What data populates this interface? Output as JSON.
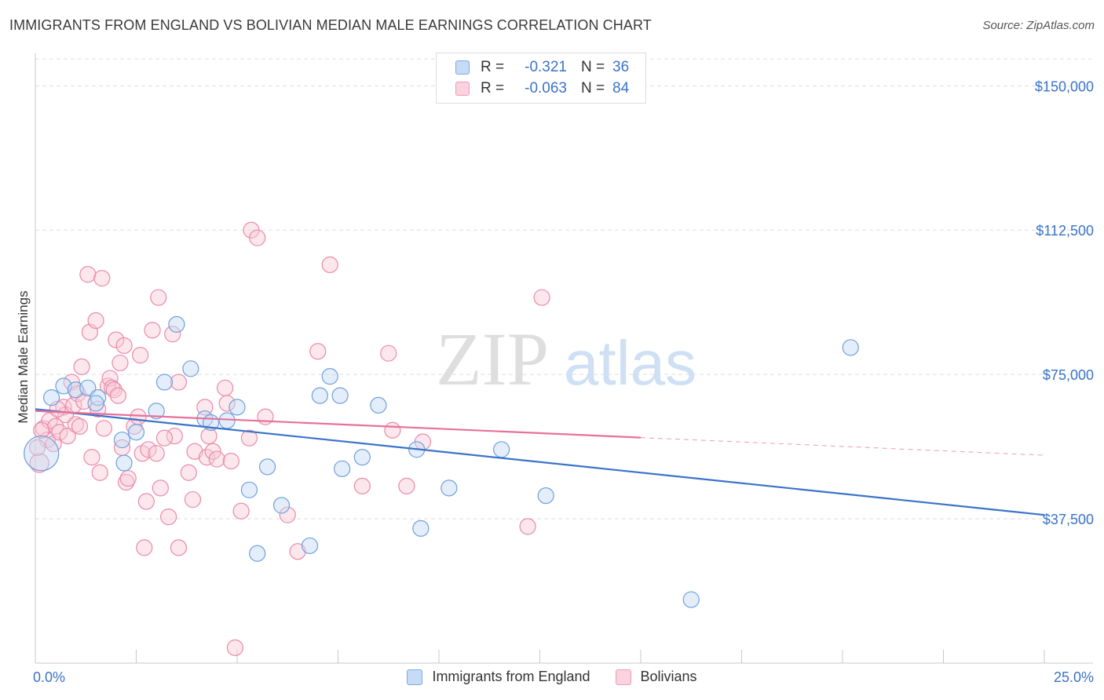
{
  "title": "IMMIGRANTS FROM ENGLAND VS BOLIVIAN MEDIAN MALE EARNINGS CORRELATION CHART",
  "source": "Source: ZipAtlas.com",
  "watermark": {
    "zip": "ZIP",
    "atlas": "atlas"
  },
  "legend_top": [
    {
      "r_label": "R =",
      "r_value": "-0.321",
      "n_label": "N =",
      "n_value": "36",
      "color": "#a9c8ef"
    },
    {
      "r_label": "R =",
      "r_value": "-0.063",
      "n_label": "N =",
      "n_value": "84",
      "color": "#f5b8c9"
    }
  ],
  "legend_bottom": [
    {
      "label": "Immigrants from England",
      "color": "#a9c8ef"
    },
    {
      "label": "Bolivians",
      "color": "#f5b8c9"
    }
  ],
  "colors": {
    "blue": "#3a73c9",
    "blue_fill": "#a9c8ef",
    "pink": "#e8709a",
    "pink_fill": "#f5b8c9",
    "grid": "#dddddd",
    "tick_text": "#3a73c9"
  },
  "chart_data": {
    "type": "scatter",
    "xlabel": "",
    "ylabel": "Median Male Earnings",
    "xlim": [
      0,
      25
    ],
    "ylim": [
      0,
      157000
    ],
    "x_tick_labels": [
      {
        "value": 0,
        "label": "0.0%"
      },
      {
        "value": 25,
        "label": "25.0%"
      }
    ],
    "y_ticks": [
      {
        "value": 37500,
        "label": "$37,500"
      },
      {
        "value": 75000,
        "label": "$75,000"
      },
      {
        "value": 112500,
        "label": "$112,500"
      },
      {
        "value": 150000,
        "label": "$150,000"
      }
    ],
    "series": [
      {
        "name": "Immigrants from England",
        "color": "#a9c8ef",
        "trend": {
          "x0": 0,
          "y0": 66000,
          "x1": 25,
          "y1": 38500,
          "x_solid_end": 25
        },
        "points": [
          [
            0.15,
            54500,
            22
          ],
          [
            0.4,
            69000,
            10
          ],
          [
            0.7,
            72000,
            10
          ],
          [
            1.0,
            71000,
            10
          ],
          [
            1.3,
            71500,
            10
          ],
          [
            1.55,
            69000,
            10
          ],
          [
            1.5,
            67500,
            10
          ],
          [
            2.15,
            58000,
            10
          ],
          [
            2.2,
            52000,
            10
          ],
          [
            2.5,
            60000,
            10
          ],
          [
            3.0,
            65500,
            10
          ],
          [
            3.2,
            73000,
            10
          ],
          [
            3.5,
            88000,
            10
          ],
          [
            3.85,
            76500,
            10
          ],
          [
            4.2,
            63500,
            10
          ],
          [
            4.35,
            62500,
            10
          ],
          [
            4.75,
            63000,
            10
          ],
          [
            5.0,
            66500,
            10
          ],
          [
            5.3,
            45000,
            10
          ],
          [
            5.5,
            28500,
            10
          ],
          [
            5.75,
            51000,
            10
          ],
          [
            6.1,
            41000,
            10
          ],
          [
            6.8,
            30500,
            10
          ],
          [
            7.05,
            69500,
            10
          ],
          [
            7.3,
            74500,
            10
          ],
          [
            7.55,
            69500,
            10
          ],
          [
            7.6,
            50500,
            10
          ],
          [
            8.1,
            53500,
            10
          ],
          [
            8.5,
            67000,
            10
          ],
          [
            9.45,
            55500,
            10
          ],
          [
            9.55,
            35000,
            10
          ],
          [
            10.25,
            45500,
            10
          ],
          [
            11.55,
            55500,
            10
          ],
          [
            12.65,
            43500,
            10
          ],
          [
            16.25,
            16500,
            10
          ],
          [
            20.2,
            82000,
            10
          ]
        ]
      },
      {
        "name": "Bolivians",
        "color": "#f5b8c9",
        "trend": {
          "x0": 0,
          "y0": 65500,
          "x1": 25,
          "y1": 54000,
          "x_solid_end": 15
        },
        "points": [
          [
            0.1,
            52000,
            12
          ],
          [
            0.2,
            61000,
            10
          ],
          [
            0.3,
            58000,
            10
          ],
          [
            0.35,
            63000,
            10
          ],
          [
            0.45,
            57000,
            10
          ],
          [
            0.5,
            61500,
            10
          ],
          [
            0.6,
            60000,
            10
          ],
          [
            0.7,
            66500,
            10
          ],
          [
            0.75,
            64500,
            10
          ],
          [
            0.8,
            59000,
            10
          ],
          [
            0.9,
            73000,
            10
          ],
          [
            0.95,
            67000,
            10
          ],
          [
            1.0,
            62000,
            10
          ],
          [
            1.05,
            70000,
            10
          ],
          [
            1.1,
            61500,
            10
          ],
          [
            1.15,
            77000,
            10
          ],
          [
            1.2,
            68000,
            10
          ],
          [
            1.3,
            101000,
            10
          ],
          [
            1.35,
            86000,
            10
          ],
          [
            1.4,
            53500,
            10
          ],
          [
            1.5,
            89000,
            10
          ],
          [
            1.55,
            66000,
            10
          ],
          [
            1.6,
            49500,
            10
          ],
          [
            1.65,
            100000,
            10
          ],
          [
            1.7,
            61000,
            10
          ],
          [
            1.8,
            72000,
            10
          ],
          [
            1.85,
            74000,
            10
          ],
          [
            1.9,
            71500,
            10
          ],
          [
            1.95,
            71000,
            10
          ],
          [
            2.0,
            84000,
            10
          ],
          [
            2.05,
            69500,
            10
          ],
          [
            2.1,
            78000,
            10
          ],
          [
            2.15,
            56000,
            10
          ],
          [
            2.2,
            82500,
            10
          ],
          [
            2.25,
            47000,
            10
          ],
          [
            2.3,
            48000,
            10
          ],
          [
            2.45,
            61500,
            10
          ],
          [
            2.55,
            64000,
            10
          ],
          [
            2.6,
            80000,
            10
          ],
          [
            2.65,
            54500,
            10
          ],
          [
            2.7,
            30000,
            10
          ],
          [
            2.75,
            42000,
            10
          ],
          [
            2.8,
            55500,
            10
          ],
          [
            2.9,
            86500,
            10
          ],
          [
            3.0,
            54500,
            10
          ],
          [
            3.05,
            95000,
            10
          ],
          [
            3.1,
            45500,
            10
          ],
          [
            3.3,
            38000,
            10
          ],
          [
            3.4,
            85500,
            10
          ],
          [
            3.45,
            59000,
            10
          ],
          [
            3.55,
            73000,
            10
          ],
          [
            3.55,
            30000,
            10
          ],
          [
            3.8,
            49500,
            10
          ],
          [
            3.9,
            42500,
            10
          ],
          [
            3.95,
            55000,
            10
          ],
          [
            4.2,
            66500,
            10
          ],
          [
            4.25,
            53500,
            10
          ],
          [
            4.3,
            59000,
            10
          ],
          [
            4.4,
            55000,
            10
          ],
          [
            4.5,
            53000,
            10
          ],
          [
            4.7,
            71500,
            10
          ],
          [
            4.75,
            67500,
            10
          ],
          [
            4.85,
            52500,
            10
          ],
          [
            4.95,
            4000,
            10
          ],
          [
            5.1,
            39500,
            10
          ],
          [
            5.3,
            58500,
            10
          ],
          [
            5.35,
            112500,
            10
          ],
          [
            5.5,
            110500,
            10
          ],
          [
            5.7,
            64000,
            10
          ],
          [
            6.25,
            38500,
            10
          ],
          [
            6.5,
            29000,
            10
          ],
          [
            7.0,
            81000,
            10
          ],
          [
            7.3,
            103500,
            10
          ],
          [
            8.1,
            46000,
            10
          ],
          [
            8.75,
            80500,
            10
          ],
          [
            8.85,
            60500,
            10
          ],
          [
            9.2,
            46000,
            10
          ],
          [
            9.6,
            57500,
            10
          ],
          [
            12.2,
            35500,
            10
          ],
          [
            12.55,
            95000,
            10
          ],
          [
            0.05,
            56000,
            10
          ],
          [
            0.15,
            60500,
            10
          ],
          [
            0.55,
            66000,
            10
          ],
          [
            3.2,
            58500,
            10
          ]
        ]
      }
    ]
  }
}
